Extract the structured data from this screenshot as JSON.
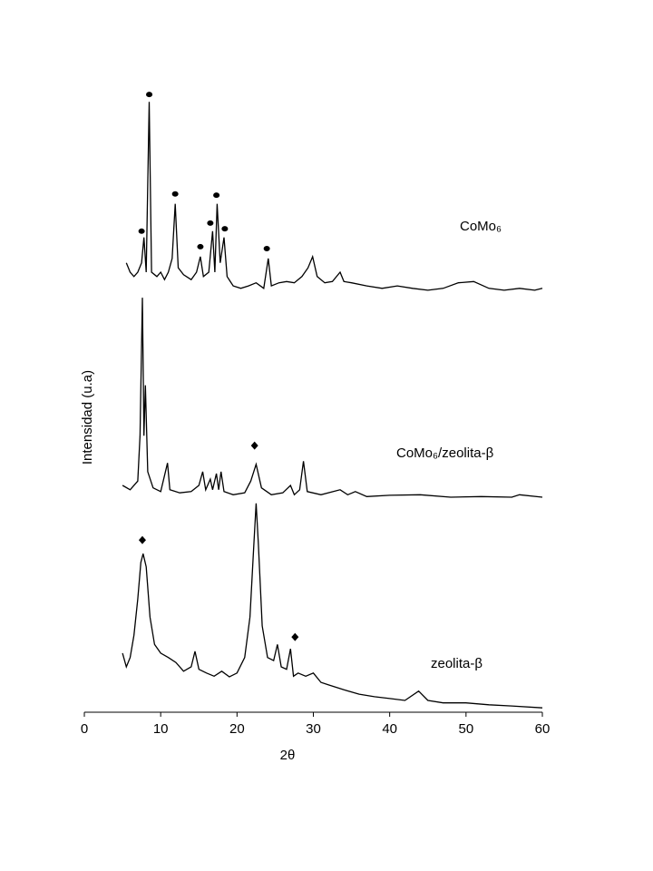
{
  "chart_data": {
    "type": "line",
    "x_label": "2θ",
    "y_label": "Intensidad  (u.a)",
    "xlim": [
      0,
      60
    ],
    "xticks": [
      0,
      10,
      20,
      30,
      40,
      50,
      60
    ],
    "ylim": [
      0,
      100
    ],
    "series": [
      {
        "name": "CoMo₆",
        "color": "#000000",
        "x": [
          5.5,
          6,
          6.5,
          7,
          7.5,
          7.8,
          8.1,
          8.5,
          8.8,
          9.5,
          10,
          10.5,
          11,
          11.5,
          11.9,
          12.3,
          13,
          14,
          14.7,
          15.2,
          15.6,
          16.3,
          16.8,
          17.1,
          17.4,
          17.8,
          18.3,
          18.7,
          19.5,
          20.5,
          21.5,
          22.5,
          23.5,
          24.1,
          24.5,
          25.5,
          26.5,
          27.5,
          28.5,
          29.3,
          29.9,
          30.5,
          31.5,
          32.5,
          33.5,
          34,
          35,
          37,
          39,
          41,
          43,
          45,
          47,
          49,
          51,
          53,
          55,
          57,
          59,
          60
        ],
        "values": [
          72.3,
          70.8,
          70.1,
          70.8,
          72.3,
          76.4,
          70.8,
          98.2,
          70.8,
          70.1,
          70.8,
          69.6,
          70.8,
          73.0,
          81.8,
          71.5,
          70.4,
          69.6,
          70.8,
          73.3,
          70.1,
          70.8,
          77.4,
          70.8,
          81.8,
          72.3,
          76.4,
          70.1,
          68.6,
          68.2,
          68.6,
          69.1,
          68.2,
          73.0,
          68.6,
          69.1,
          69.3,
          69.1,
          70.1,
          71.5,
          73.3,
          70.1,
          69.1,
          69.3,
          70.8,
          69.3,
          69.1,
          68.6,
          68.2,
          68.6,
          68.2,
          67.9,
          68.2,
          69.1,
          69.3,
          68.2,
          67.9,
          68.2,
          67.9,
          68.2
        ],
        "markers": {
          "symbol": "circle",
          "x": [
            7.5,
            8.5,
            11.9,
            15.2,
            16.5,
            17.3,
            18.4,
            23.9
          ],
          "values": [
            77.4,
            99.4,
            83.4,
            74.9,
            78.7,
            83.2,
            77.8,
            74.6
          ]
        }
      },
      {
        "name": "CoMo₆/zeolita-β",
        "color": "#000000",
        "x": [
          5,
          6,
          7,
          7.3,
          7.6,
          7.8,
          8.0,
          8.3,
          9,
          10,
          10.9,
          11.2,
          12.5,
          14,
          15,
          15.5,
          15.9,
          16.5,
          16.8,
          17.3,
          17.6,
          17.9,
          18.3,
          19.5,
          21,
          21.8,
          22.5,
          23.2,
          24.5,
          26,
          27,
          27.5,
          28.2,
          28.7,
          29.2,
          31,
          33.5,
          34.5,
          35.5,
          37,
          40,
          44,
          48,
          52,
          56,
          57,
          60
        ],
        "values": [
          36.5,
          35.8,
          37.2,
          44.5,
          66.7,
          44.5,
          52.6,
          38.7,
          36.1,
          35.5,
          40.1,
          35.8,
          35.3,
          35.5,
          36.5,
          38.7,
          35.8,
          37.5,
          35.8,
          38.4,
          35.8,
          38.7,
          35.5,
          35.0,
          35.3,
          37.2,
          39.9,
          36.1,
          35.0,
          35.3,
          36.5,
          35.0,
          35.8,
          40.4,
          35.5,
          35.0,
          35.8,
          35.0,
          35.5,
          34.7,
          34.9,
          35.0,
          34.6,
          34.7,
          34.6,
          35.0,
          34.6
        ],
        "markers": {
          "symbol": "diamond",
          "x": [
            22.3
          ],
          "values": [
            42.9
          ]
        }
      },
      {
        "name": "zeolita-β",
        "color": "#000000",
        "x": [
          5,
          5.5,
          6,
          6.5,
          7,
          7.4,
          7.7,
          8.1,
          8.6,
          9.2,
          10,
          11,
          12,
          13,
          14,
          14.5,
          15,
          16,
          17,
          18,
          19,
          20,
          21,
          21.7,
          22.2,
          22.5,
          22.8,
          23.3,
          24,
          24.8,
          25.3,
          25.8,
          26.5,
          27,
          27.4,
          28,
          29,
          30,
          31,
          32,
          34,
          36,
          38,
          40,
          42,
          43.8,
          45,
          47,
          50,
          53,
          56,
          60
        ],
        "values": [
          9.5,
          7.3,
          8.8,
          12.4,
          18.2,
          24.1,
          25.5,
          23.4,
          15.3,
          10.9,
          9.5,
          8.8,
          8.0,
          6.6,
          7.3,
          9.8,
          6.9,
          6.3,
          5.8,
          6.6,
          5.7,
          6.3,
          8.8,
          15.3,
          27.0,
          33.6,
          27.0,
          13.9,
          8.8,
          8.3,
          10.9,
          7.3,
          6.9,
          10.2,
          5.8,
          6.3,
          5.8,
          6.3,
          4.8,
          4.4,
          3.6,
          2.9,
          2.5,
          2.2,
          1.9,
          3.4,
          1.9,
          1.5,
          1.5,
          1.2,
          1.0,
          0.7
        ],
        "markers": {
          "symbol": "diamond",
          "x": [
            7.6,
            27.6
          ],
          "values": [
            27.7,
            12.1
          ]
        }
      }
    ]
  }
}
